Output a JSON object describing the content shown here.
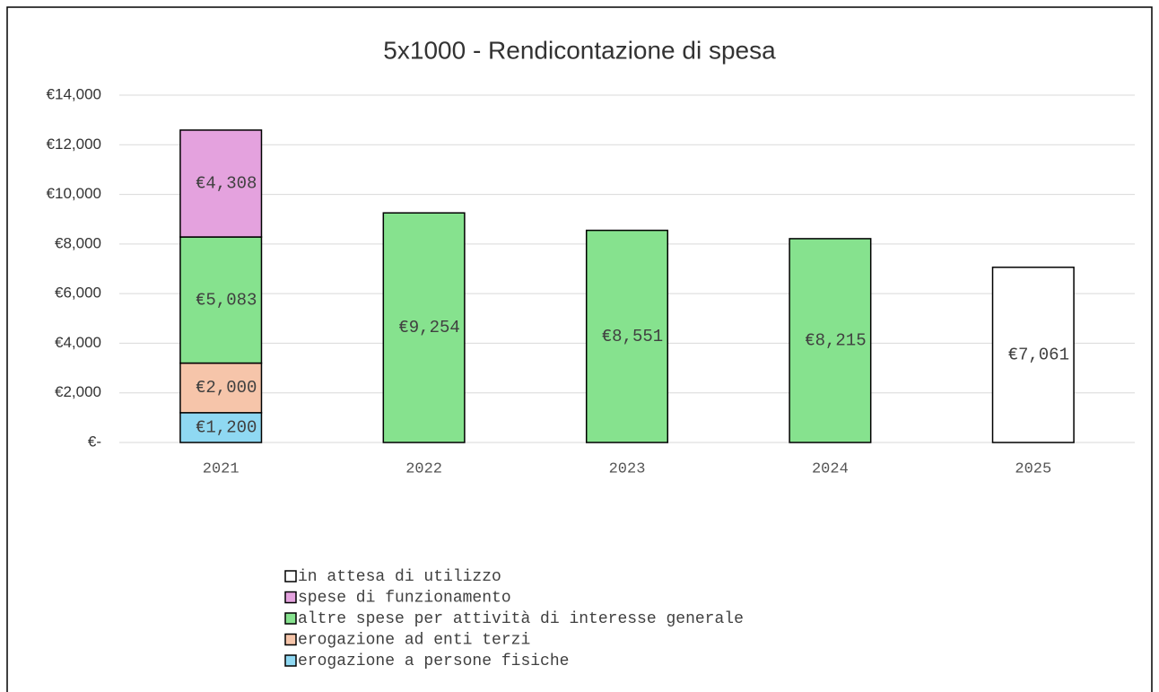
{
  "chart_data": {
    "type": "stacked_bar",
    "title": "5x1000 - Rendicontazione di spesa",
    "categories": [
      "2021",
      "2022",
      "2023",
      "2024",
      "2025"
    ],
    "series": [
      {
        "name": "erogazione a persone fisiche",
        "color": "#8fd8f2",
        "values": [
          1200,
          null,
          null,
          null,
          null
        ],
        "value_labels": [
          "€1,200",
          null,
          null,
          null,
          null
        ]
      },
      {
        "name": "erogazione ad enti terzi",
        "color": "#f6c5aa",
        "values": [
          2000,
          null,
          null,
          null,
          null
        ],
        "value_labels": [
          "€2,000",
          null,
          null,
          null,
          null
        ]
      },
      {
        "name": "altre spese per attività di interesse generale",
        "color": "#86e28e",
        "values": [
          5083,
          9254,
          8551,
          8215,
          null
        ],
        "value_labels": [
          "€5,083",
          "€9,254",
          "€8,551",
          "€8,215",
          null
        ]
      },
      {
        "name": "spese di funzionamento",
        "color": "#e4a2de",
        "values": [
          4308,
          null,
          null,
          null,
          null
        ],
        "value_labels": [
          "€4,308",
          null,
          null,
          null,
          null
        ]
      },
      {
        "name": "in attesa di utilizzo",
        "color": "#ffffff",
        "values": [
          null,
          null,
          null,
          null,
          7061
        ],
        "value_labels": [
          null,
          null,
          null,
          null,
          "€7,061"
        ]
      }
    ],
    "ylim": [
      0,
      14000
    ],
    "yticks": [
      {
        "value": 0,
        "label": "€-"
      },
      {
        "value": 2000,
        "label": "€2,000"
      },
      {
        "value": 4000,
        "label": "€4,000"
      },
      {
        "value": 6000,
        "label": "€6,000"
      },
      {
        "value": 8000,
        "label": "€8,000"
      },
      {
        "value": 10000,
        "label": "€10,000"
      },
      {
        "value": 12000,
        "label": "€12,000"
      },
      {
        "value": 14000,
        "label": "€14,000"
      }
    ],
    "grid": true,
    "legend": "bottom"
  }
}
